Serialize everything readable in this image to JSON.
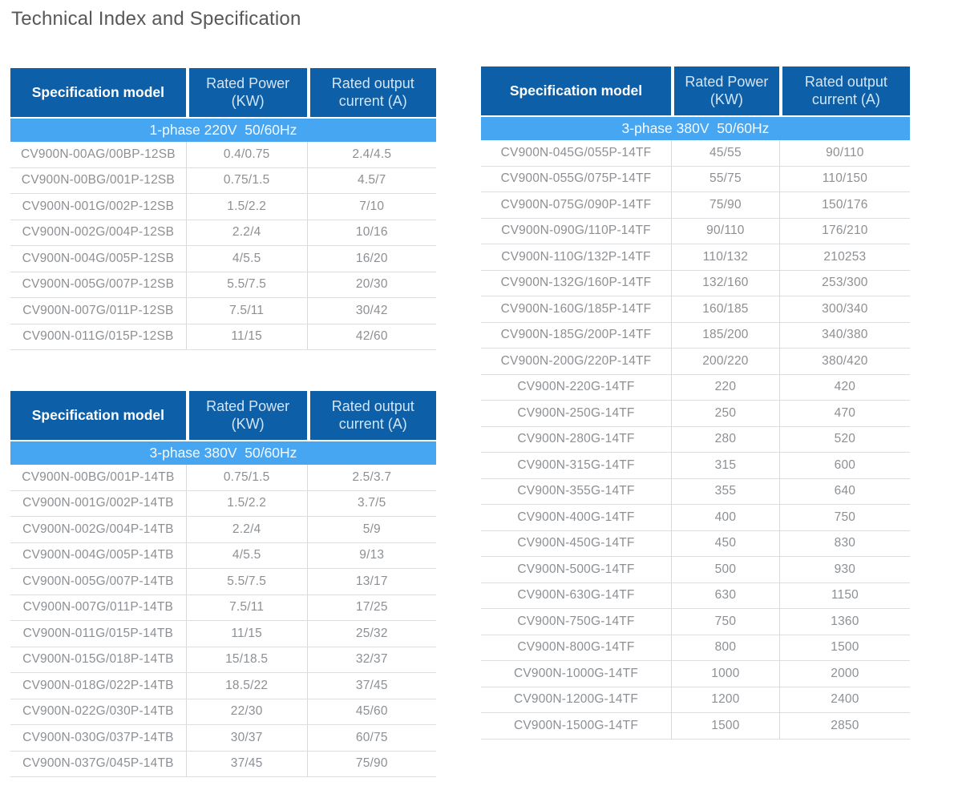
{
  "page_title": "Technical Index and Specification",
  "colors": {
    "header_blue": "#0d5fa8",
    "band_blue": "#47a6f2",
    "body_text_gray": "#8c9094",
    "title_gray": "#58585a",
    "border_gray": "#dcdee0"
  },
  "columns": {
    "model": "Specification model",
    "power_line1": "Rated Power",
    "power_line2": "(KW)",
    "current_line1": "Rated output",
    "current_line2": "current (A)"
  },
  "tables": [
    {
      "band": "1-phase 220V  50/60Hz",
      "rows": [
        {
          "model": "CV900N-00AG/00BP-12SB",
          "power": "0.4/0.75",
          "current": "2.4/4.5"
        },
        {
          "model": "CV900N-00BG/001P-12SB",
          "power": "0.75/1.5",
          "current": "4.5/7"
        },
        {
          "model": "CV900N-001G/002P-12SB",
          "power": "1.5/2.2",
          "current": "7/10"
        },
        {
          "model": "CV900N-002G/004P-12SB",
          "power": "2.2/4",
          "current": "10/16"
        },
        {
          "model": "CV900N-004G/005P-12SB",
          "power": "4/5.5",
          "current": "16/20"
        },
        {
          "model": "CV900N-005G/007P-12SB",
          "power": "5.5/7.5",
          "current": "20/30"
        },
        {
          "model": "CV900N-007G/011P-12SB",
          "power": "7.5/11",
          "current": "30/42"
        },
        {
          "model": "CV900N-011G/015P-12SB",
          "power": "11/15",
          "current": "42/60"
        }
      ]
    },
    {
      "band": "3-phase 380V  50/60Hz",
      "rows": [
        {
          "model": "CV900N-00BG/001P-14TB",
          "power": "0.75/1.5",
          "current": "2.5/3.7"
        },
        {
          "model": "CV900N-001G/002P-14TB",
          "power": "1.5/2.2",
          "current": "3.7/5"
        },
        {
          "model": "CV900N-002G/004P-14TB",
          "power": "2.2/4",
          "current": "5/9"
        },
        {
          "model": "CV900N-004G/005P-14TB",
          "power": "4/5.5",
          "current": "9/13"
        },
        {
          "model": "CV900N-005G/007P-14TB",
          "power": "5.5/7.5",
          "current": "13/17"
        },
        {
          "model": "CV900N-007G/011P-14TB",
          "power": "7.5/11",
          "current": "17/25"
        },
        {
          "model": "CV900N-011G/015P-14TB",
          "power": "11/15",
          "current": "25/32"
        },
        {
          "model": "CV900N-015G/018P-14TB",
          "power": "15/18.5",
          "current": "32/37"
        },
        {
          "model": "CV900N-018G/022P-14TB",
          "power": "18.5/22",
          "current": "37/45"
        },
        {
          "model": "CV900N-022G/030P-14TB",
          "power": "22/30",
          "current": "45/60"
        },
        {
          "model": "CV900N-030G/037P-14TB",
          "power": "30/37",
          "current": "60/75"
        },
        {
          "model": "CV900N-037G/045P-14TB",
          "power": "37/45",
          "current": "75/90"
        }
      ]
    },
    {
      "band": "3-phase 380V  50/60Hz",
      "rows": [
        {
          "model": "CV900N-045G/055P-14TF",
          "power": "45/55",
          "current": "90/110"
        },
        {
          "model": "CV900N-055G/075P-14TF",
          "power": "55/75",
          "current": "110/150"
        },
        {
          "model": "CV900N-075G/090P-14TF",
          "power": "75/90",
          "current": "150/176"
        },
        {
          "model": "CV900N-090G/110P-14TF",
          "power": "90/110",
          "current": "176/210"
        },
        {
          "model": "CV900N-110G/132P-14TF",
          "power": "110/132",
          "current": "210253"
        },
        {
          "model": "CV900N-132G/160P-14TF",
          "power": "132/160",
          "current": "253/300"
        },
        {
          "model": "CV900N-160G/185P-14TF",
          "power": "160/185",
          "current": "300/340"
        },
        {
          "model": "CV900N-185G/200P-14TF",
          "power": "185/200",
          "current": "340/380"
        },
        {
          "model": "CV900N-200G/220P-14TF",
          "power": "200/220",
          "current": "380/420"
        },
        {
          "model": "CV900N-220G-14TF",
          "power": "220",
          "current": "420"
        },
        {
          "model": "CV900N-250G-14TF",
          "power": "250",
          "current": "470"
        },
        {
          "model": "CV900N-280G-14TF",
          "power": "280",
          "current": "520"
        },
        {
          "model": "CV900N-315G-14TF",
          "power": "315",
          "current": "600"
        },
        {
          "model": "CV900N-355G-14TF",
          "power": "355",
          "current": "640"
        },
        {
          "model": "CV900N-400G-14TF",
          "power": "400",
          "current": "750"
        },
        {
          "model": "CV900N-450G-14TF",
          "power": "450",
          "current": "830"
        },
        {
          "model": "CV900N-500G-14TF",
          "power": "500",
          "current": "930"
        },
        {
          "model": "CV900N-630G-14TF",
          "power": "630",
          "current": "1150"
        },
        {
          "model": "CV900N-750G-14TF",
          "power": "750",
          "current": "1360"
        },
        {
          "model": "CV900N-800G-14TF",
          "power": "800",
          "current": "1500"
        },
        {
          "model": "CV900N-1000G-14TF",
          "power": "1000",
          "current": "2000"
        },
        {
          "model": "CV900N-1200G-14TF",
          "power": "1200",
          "current": "2400"
        },
        {
          "model": "CV900N-1500G-14TF",
          "power": "1500",
          "current": "2850"
        }
      ]
    }
  ]
}
